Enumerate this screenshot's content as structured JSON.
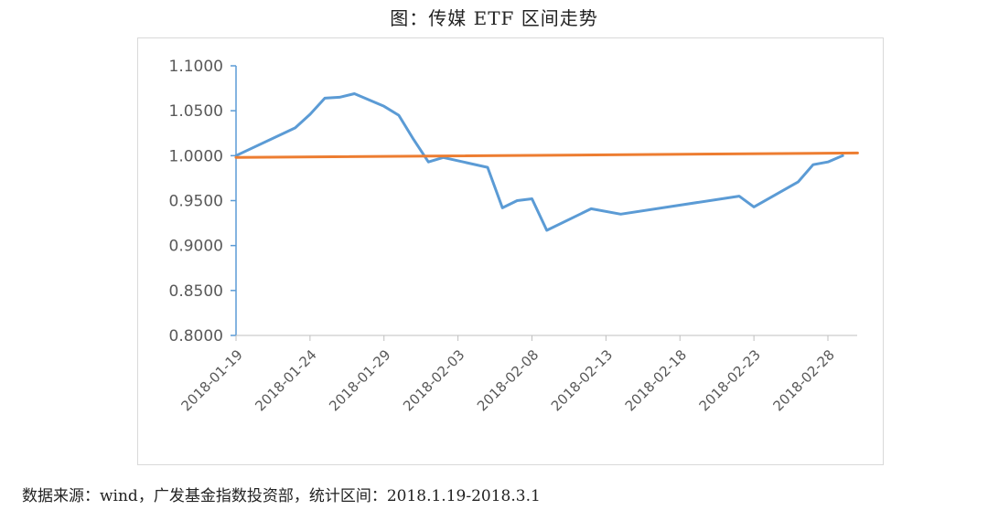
{
  "title": "图：传媒 ETF 区间走势",
  "source": "数据来源：wind，广发基金指数投资部，统计区间：2018.1.19-2018.3.1",
  "chart_data": {
    "type": "line",
    "title": "图：传媒 ETF 区间走势",
    "xlabel": "",
    "ylabel": "",
    "ylim": [
      0.8,
      1.1
    ],
    "ytick_step": 0.05,
    "ytick_labels": [
      "0.8000",
      "0.8500",
      "0.9000",
      "0.9500",
      "1.0000",
      "1.0500",
      "1.1000"
    ],
    "xtick_labels": [
      "2018-01-19",
      "2018-01-24",
      "2018-01-29",
      "2018-02-03",
      "2018-02-08",
      "2018-02-13",
      "2018-02-18",
      "2018-02-23",
      "2018-02-28"
    ],
    "grid": false,
    "legend": "none",
    "series": [
      {
        "color": "#5b9bd5",
        "points": [
          [
            "2018-01-19",
            1.0
          ],
          [
            "2018-01-23",
            1.031
          ],
          [
            "2018-01-24",
            1.046
          ],
          [
            "2018-01-25",
            1.064
          ],
          [
            "2018-01-26",
            1.065
          ],
          [
            "2018-01-27",
            1.069
          ],
          [
            "2018-01-29",
            1.055
          ],
          [
            "2018-01-30",
            1.045
          ],
          [
            "2018-01-31",
            1.018
          ],
          [
            "2018-02-01",
            0.993
          ],
          [
            "2018-02-02",
            0.998
          ],
          [
            "2018-02-05",
            0.987
          ],
          [
            "2018-02-06",
            0.942
          ],
          [
            "2018-02-07",
            0.95
          ],
          [
            "2018-02-08",
            0.952
          ],
          [
            "2018-02-09",
            0.917
          ],
          [
            "2018-02-12",
            0.941
          ],
          [
            "2018-02-14",
            0.935
          ],
          [
            "2018-02-22",
            0.955
          ],
          [
            "2018-02-23",
            0.943
          ],
          [
            "2018-02-26",
            0.971
          ],
          [
            "2018-02-27",
            0.99
          ],
          [
            "2018-02-28",
            0.993
          ],
          [
            "2018-03-01",
            1.0
          ]
        ]
      },
      {
        "color": "#ed7d31",
        "points": [
          [
            "2018-01-19",
            0.998
          ],
          [
            "2018-03-02",
            1.003
          ]
        ]
      }
    ]
  }
}
